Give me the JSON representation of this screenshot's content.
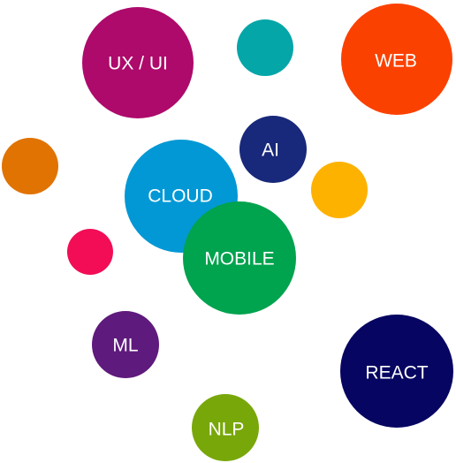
{
  "bubbles": [
    {
      "id": "ux-ui",
      "label": "UX / UI",
      "color": "#ad0a6b"
    },
    {
      "id": "teal",
      "label": "",
      "color": "#04a6a8"
    },
    {
      "id": "web",
      "label": "WEB",
      "color": "#fb4100"
    },
    {
      "id": "orange",
      "label": "",
      "color": "#e07302"
    },
    {
      "id": "ai",
      "label": "AI",
      "color": "#18287a"
    },
    {
      "id": "yellow",
      "label": "",
      "color": "#fdb200"
    },
    {
      "id": "cloud",
      "label": "CLOUD",
      "color": "#0298d5"
    },
    {
      "id": "mobile",
      "label": "MOBILE",
      "color": "#00a34e"
    },
    {
      "id": "pink",
      "label": "",
      "color": "#f20d56"
    },
    {
      "id": "ml",
      "label": "ML",
      "color": "#5e1a7c"
    },
    {
      "id": "react",
      "label": "REACT",
      "color": "#060561"
    },
    {
      "id": "nlp",
      "label": "NLP",
      "color": "#78a70a"
    }
  ]
}
